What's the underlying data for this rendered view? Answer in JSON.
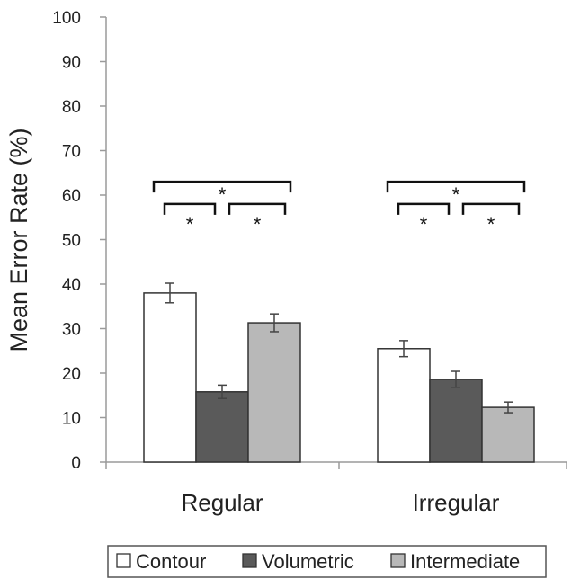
{
  "chart_data": {
    "type": "bar",
    "title": "",
    "xlabel": "",
    "ylabel": "Mean Error Rate (%)",
    "ylim": [
      0,
      100
    ],
    "yticks": [
      "0",
      "10",
      "20",
      "30",
      "40",
      "50",
      "60",
      "70",
      "80",
      "90",
      "100"
    ],
    "categories": [
      "Regular",
      "Irregular"
    ],
    "series": [
      {
        "name": "Contour",
        "values": [
          38,
          25.5
        ],
        "errors": [
          2.2,
          1.8
        ],
        "color": "#ffffff"
      },
      {
        "name": "Volumetric",
        "values": [
          15.8,
          18.6
        ],
        "errors": [
          1.5,
          1.8
        ],
        "color": "#5a5a5a"
      },
      {
        "name": "Intermediate",
        "values": [
          31.3,
          12.3
        ],
        "errors": [
          2.0,
          1.2
        ],
        "color": "#b8b8b8"
      }
    ],
    "grid": false,
    "legend_position": "bottom",
    "significance": [
      {
        "category": "Regular",
        "from": "Contour",
        "to": "Volumetric",
        "label": "*",
        "level": 58
      },
      {
        "category": "Regular",
        "from": "Volumetric",
        "to": "Intermediate",
        "label": "*",
        "level": 58
      },
      {
        "category": "Regular",
        "from": "Contour",
        "to": "Intermediate",
        "label": "*",
        "level": 63
      },
      {
        "category": "Irregular",
        "from": "Contour",
        "to": "Volumetric",
        "label": "*",
        "level": 58
      },
      {
        "category": "Irregular",
        "from": "Volumetric",
        "to": "Intermediate",
        "label": "*",
        "level": 58
      },
      {
        "category": "Irregular",
        "from": "Contour",
        "to": "Intermediate",
        "label": "*",
        "level": 63
      }
    ]
  }
}
